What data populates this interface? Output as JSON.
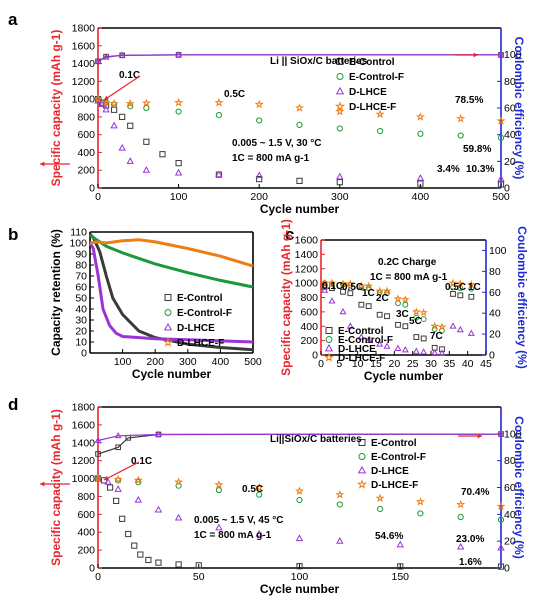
{
  "chart_data": [
    {
      "panel": "a",
      "type": "scatter",
      "xlabel": "Cycle number",
      "ylabel": "Specific capacity (mAh g-1)",
      "y2label": "Coulombic efficiency (%)",
      "xlim": [
        0,
        500
      ],
      "ylim": [
        0,
        1800
      ],
      "y2lim": [
        0,
        120
      ],
      "xticks": [
        0,
        100,
        200,
        300,
        400,
        500
      ],
      "yticks": [
        0,
        200,
        400,
        600,
        800,
        1000,
        1200,
        1400,
        1600,
        1800
      ],
      "y2ticks": [
        0,
        20,
        40,
        60,
        80,
        100
      ],
      "legend": [
        "E-Control",
        "E-Control-F",
        "D-LHCE",
        "D-LHCE-F"
      ],
      "legend_position": "top-right",
      "annotations": [
        "Li || SiOx/C batteries",
        "0.1C",
        "0.5C",
        "0.005 ~ 1.5 V, 30 °C",
        "1C = 800 mA g-1",
        "78.5%",
        "59.8%",
        "10.3%",
        "3.4%"
      ],
      "series": [
        {
          "name": "E-Control",
          "x": [
            0,
            5,
            10,
            20,
            30,
            40,
            60,
            80,
            100,
            150,
            200,
            250,
            300,
            400,
            500
          ],
          "y": [
            1000,
            960,
            930,
            880,
            800,
            700,
            520,
            380,
            280,
            150,
            100,
            80,
            65,
            50,
            40
          ]
        },
        {
          "name": "E-Control-F",
          "x": [
            0,
            10,
            20,
            40,
            60,
            100,
            150,
            200,
            250,
            300,
            350,
            400,
            450,
            500
          ],
          "y": [
            1000,
            960,
            940,
            920,
            900,
            860,
            820,
            760,
            710,
            670,
            640,
            610,
            590,
            565
          ]
        },
        {
          "name": "D-LHCE",
          "x": [
            0,
            5,
            10,
            20,
            30,
            40,
            60,
            100,
            150,
            200,
            300,
            400,
            500
          ],
          "y": [
            980,
            940,
            880,
            700,
            450,
            300,
            200,
            170,
            150,
            140,
            125,
            110,
            100
          ]
        },
        {
          "name": "D-LHCE-F",
          "x": [
            0,
            10,
            20,
            40,
            60,
            100,
            150,
            200,
            250,
            300,
            350,
            400,
            450,
            500
          ],
          "y": [
            1000,
            960,
            950,
            950,
            955,
            960,
            960,
            940,
            900,
            860,
            830,
            800,
            780,
            755
          ]
        }
      ],
      "ce_series": [
        {
          "name": "E-Control",
          "x": [
            0,
            10,
            30,
            100,
            500
          ],
          "y": [
            95,
            98.5,
            99.5,
            99.8,
            99.8
          ]
        },
        {
          "name": "D-LHCE",
          "x": [
            0,
            10,
            30,
            100,
            500
          ],
          "y": [
            95,
            98,
            99.5,
            99.8,
            99.8
          ]
        }
      ]
    },
    {
      "panel": "b",
      "type": "line",
      "xlabel": "Cycle number",
      "ylabel": "Capacity retention (%)",
      "xlim": [
        0,
        500
      ],
      "ylim": [
        0,
        110
      ],
      "xticks": [
        100,
        200,
        300,
        400,
        500
      ],
      "yticks": [
        0,
        10,
        20,
        30,
        40,
        50,
        60,
        70,
        80,
        90,
        100,
        110
      ],
      "legend": [
        "E-Control",
        "E-Control-F",
        "D-LHCE",
        "D-LHCE-F"
      ],
      "legend_position": "right",
      "series": [
        {
          "name": "E-Control",
          "x": [
            0,
            10,
            30,
            50,
            70,
            100,
            150,
            200,
            300,
            400,
            500
          ],
          "y": [
            108,
            105,
            92,
            70,
            50,
            35,
            20,
            14,
            8,
            5,
            3
          ]
        },
        {
          "name": "E-Control-F",
          "x": [
            0,
            20,
            50,
            100,
            150,
            200,
            300,
            400,
            500
          ],
          "y": [
            107,
            103,
            97,
            91,
            86,
            81,
            73,
            66,
            60
          ]
        },
        {
          "name": "D-LHCE",
          "x": [
            0,
            10,
            25,
            40,
            60,
            80,
            100,
            150,
            200,
            300,
            400,
            500
          ],
          "y": [
            100,
            95,
            70,
            40,
            25,
            18,
            15,
            14,
            13,
            12,
            11,
            10
          ]
        },
        {
          "name": "D-LHCE-F",
          "x": [
            0,
            20,
            50,
            100,
            150,
            200,
            300,
            400,
            500
          ],
          "y": [
            100,
            101,
            100,
            102,
            103,
            101,
            95,
            88,
            79
          ]
        }
      ]
    },
    {
      "panel": "c",
      "type": "scatter",
      "xlabel": "Cycle number",
      "ylabel": "Specific capacity (mAh g-1)",
      "y2label": "Coulombic efficiency (%)",
      "xlim": [
        0,
        45
      ],
      "ylim": [
        0,
        1600
      ],
      "y2lim": [
        0,
        110
      ],
      "xticks": [
        0,
        5,
        10,
        15,
        20,
        25,
        30,
        35,
        40,
        45
      ],
      "yticks": [
        0,
        200,
        400,
        600,
        800,
        1000,
        1200,
        1400,
        1600
      ],
      "y2ticks": [
        0,
        20,
        40,
        60,
        80,
        100
      ],
      "legend": [
        "E-Control",
        "E-Control-F",
        "D-LHCE",
        "D-LHCE-F"
      ],
      "legend_position": "bottom-left",
      "annotations": [
        "0.2C Charge",
        "1C = 800 mA g-1",
        "0.1C",
        "0.5C",
        "1C",
        "2C",
        "3C",
        "5C",
        "7C",
        "0.5C",
        "1C"
      ],
      "series": [
        {
          "name": "E-Control",
          "x": [
            1,
            3,
            6,
            8,
            11,
            13,
            16,
            18,
            21,
            23,
            26,
            28,
            31,
            33,
            36,
            38,
            41
          ],
          "y": [
            950,
            930,
            880,
            860,
            700,
            680,
            560,
            540,
            420,
            400,
            250,
            230,
            100,
            80,
            850,
            830,
            810
          ]
        },
        {
          "name": "E-Control-F",
          "x": [
            1,
            3,
            6,
            8,
            11,
            13,
            16,
            18,
            21,
            23,
            26,
            28,
            31,
            33,
            36,
            38,
            41
          ],
          "y": [
            1000,
            990,
            980,
            970,
            940,
            930,
            870,
            860,
            720,
            700,
            520,
            500,
            360,
            340,
            940,
            930,
            920
          ]
        },
        {
          "name": "D-LHCE",
          "x": [
            1,
            3,
            6,
            8,
            11,
            13,
            16,
            18,
            21,
            23,
            26,
            28,
            31,
            33,
            36,
            38,
            41
          ],
          "y": [
            900,
            750,
            600,
            400,
            250,
            200,
            150,
            120,
            90,
            70,
            50,
            40,
            30,
            25,
            400,
            350,
            300
          ]
        },
        {
          "name": "D-LHCE-F",
          "x": [
            1,
            3,
            6,
            8,
            11,
            13,
            16,
            18,
            21,
            23,
            26,
            28,
            31,
            33,
            36,
            38,
            41
          ],
          "y": [
            1000,
            1000,
            990,
            990,
            960,
            960,
            890,
            890,
            780,
            770,
            600,
            590,
            400,
            390,
            1000,
            990,
            980
          ]
        }
      ]
    },
    {
      "panel": "d",
      "type": "scatter",
      "xlabel": "Cycle number",
      "ylabel": "Specific capacity (mAh g-1)",
      "y2label": "Coulombic efficiency (%)",
      "xlim": [
        0,
        200
      ],
      "ylim": [
        0,
        1800
      ],
      "y2lim": [
        0,
        120
      ],
      "xticks": [
        0,
        50,
        100,
        150
      ],
      "yticks": [
        0,
        200,
        400,
        600,
        800,
        1000,
        1200,
        1400,
        1600,
        1800
      ],
      "y2ticks": [
        0,
        20,
        40,
        60,
        80,
        100
      ],
      "legend": [
        "E-Control",
        "E-Control-F",
        "D-LHCE",
        "D-LHCE-F"
      ],
      "legend_position": "top-right",
      "annotations": [
        "Li||SiOx/C batteries",
        "0.1C",
        "0.5C",
        "0.005 ~ 1.5 V, 45 °C",
        "1C = 800 mA g-1",
        "70.4%",
        "54.6%",
        "23.0%",
        "1.6%"
      ],
      "series": [
        {
          "name": "E-Control",
          "x": [
            0,
            3,
            6,
            9,
            12,
            15,
            18,
            21,
            25,
            30,
            40,
            50,
            100,
            150,
            200
          ],
          "y": [
            1000,
            980,
            900,
            750,
            550,
            380,
            250,
            150,
            90,
            60,
            40,
            30,
            20,
            18,
            16
          ]
        },
        {
          "name": "E-Control-F",
          "x": [
            0,
            10,
            20,
            40,
            60,
            80,
            100,
            120,
            140,
            160,
            180,
            200
          ],
          "y": [
            1000,
            980,
            960,
            920,
            870,
            820,
            760,
            710,
            660,
            610,
            570,
            540
          ]
        },
        {
          "name": "D-LHCE",
          "x": [
            0,
            5,
            10,
            20,
            30,
            40,
            60,
            80,
            100,
            120,
            150,
            180,
            200
          ],
          "y": [
            1000,
            960,
            880,
            760,
            650,
            560,
            450,
            380,
            330,
            300,
            260,
            235,
            225
          ]
        },
        {
          "name": "D-LHCE-F",
          "x": [
            0,
            10,
            20,
            40,
            60,
            80,
            100,
            120,
            140,
            160,
            180,
            200
          ],
          "y": [
            1000,
            990,
            980,
            960,
            930,
            900,
            860,
            820,
            780,
            740,
            710,
            690
          ]
        }
      ],
      "ce_series": [
        {
          "name": "E-Control",
          "x": [
            0,
            10,
            15,
            30,
            200
          ],
          "y": [
            85,
            90,
            97,
            99.5,
            99.8
          ]
        },
        {
          "name": "D-LHCE",
          "x": [
            0,
            10,
            30,
            200
          ],
          "y": [
            95,
            98.5,
            99.5,
            99.8
          ]
        }
      ]
    }
  ],
  "series_styles": {
    "E-Control": {
      "color": "#3a3a3a",
      "marker": "square"
    },
    "E-Control-F": {
      "color": "#1a9a3a",
      "marker": "circle"
    },
    "D-LHCE": {
      "color": "#9b33d6",
      "marker": "triangle"
    },
    "D-LHCE-F": {
      "color": "#f07c14",
      "marker": "star"
    }
  },
  "colors": {
    "left_axis": "#e8262e",
    "right_axis": "#1f2bd1"
  }
}
